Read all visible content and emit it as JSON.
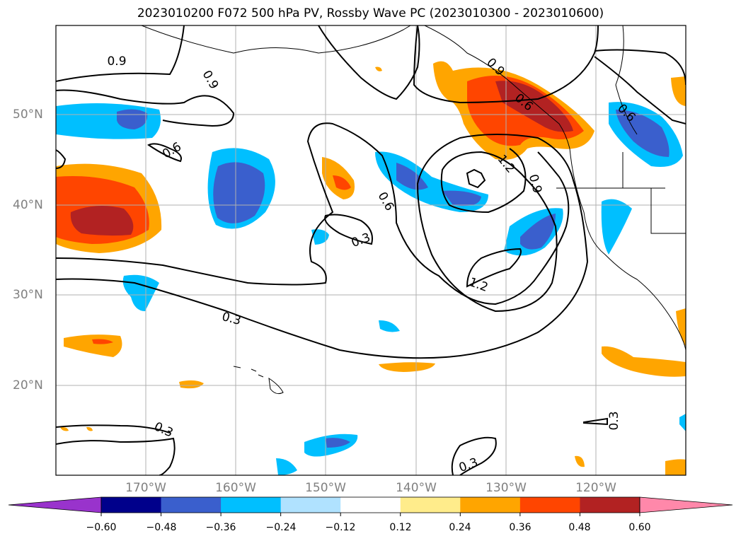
{
  "title": "2023010200 F072 500 hPa PV, Rossby Wave PC (2023010300 - 2023010600)",
  "map": {
    "lat_labels": [
      "50°N",
      "40°N",
      "30°N",
      "20°N"
    ],
    "lon_labels": [
      "170°W",
      "160°W",
      "150°W",
      "140°W",
      "130°W",
      "120°W"
    ],
    "contour_labels": [
      "0.9",
      "0.9",
      "0.6",
      "0.6",
      "0.3",
      "0.3",
      "0.3",
      "0.3",
      "0.3",
      "0.6",
      "1.2",
      "1.2",
      "0.9",
      "0.9",
      "0.6"
    ],
    "contour_color": "#000000",
    "gridline_color": "#b0b0b0"
  },
  "colorbar": {
    "ticks": [
      "−0.60",
      "−0.48",
      "−0.36",
      "−0.24",
      "−0.12",
      "0.12",
      "0.24",
      "0.36",
      "0.48",
      "0.60"
    ],
    "colors": [
      "#9933cc",
      "#00008b",
      "#3a5fcd",
      "#00bfff",
      "#b0e2ff",
      "#ffffff",
      "#ffec8b",
      "#ffa500",
      "#ff4500",
      "#b22222",
      "#ff88aa"
    ]
  }
}
